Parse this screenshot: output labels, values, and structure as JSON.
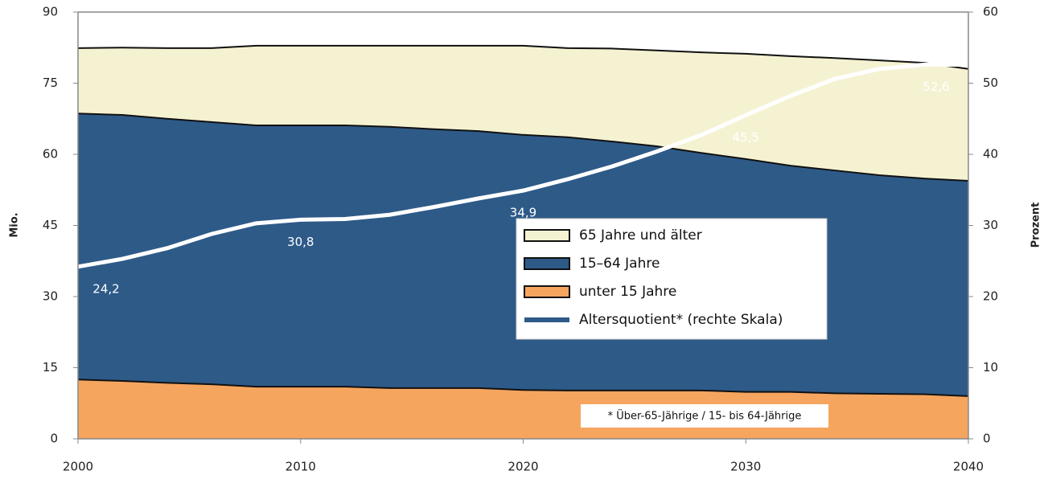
{
  "chart_data": {
    "type": "stacked_area",
    "x": [
      2000,
      2002,
      2004,
      2006,
      2008,
      2010,
      2012,
      2014,
      2016,
      2018,
      2020,
      2022,
      2024,
      2026,
      2028,
      2030,
      2032,
      2034,
      2036,
      2038,
      2040
    ],
    "series": [
      {
        "name": "unter 15 Jahre",
        "color": "#f6a55f",
        "values": [
          12.5,
          12.2,
          11.8,
          11.5,
          11.0,
          11.0,
          11.0,
          10.7,
          10.7,
          10.7,
          10.3,
          10.2,
          10.2,
          10.2,
          10.2,
          9.9,
          9.9,
          9.6,
          9.5,
          9.4,
          9.0
        ]
      },
      {
        "name": "15–64 Jahre",
        "color": "#2e5a88",
        "values": [
          56.1,
          56.1,
          55.7,
          55.3,
          55.1,
          55.1,
          55.1,
          55.1,
          54.6,
          54.2,
          53.8,
          53.4,
          52.5,
          51.5,
          50.1,
          49.1,
          47.7,
          47.0,
          46.1,
          45.5,
          45.4
        ]
      },
      {
        "name": "65 Jahre und älter",
        "color": "#f5f2d2",
        "values": [
          13.8,
          14.2,
          14.9,
          15.6,
          16.8,
          16.8,
          16.8,
          17.1,
          17.6,
          18.0,
          18.8,
          18.8,
          19.6,
          20.2,
          21.2,
          22.2,
          23.1,
          23.7,
          24.2,
          24.4,
          23.6
        ]
      },
      {
        "name": "Altersquotient* (rechte Skala)",
        "color": "#ffffff",
        "legend_color": "#2e5a88",
        "axis": "y2",
        "values": [
          24.2,
          25.3,
          26.8,
          28.8,
          30.3,
          30.8,
          30.9,
          31.5,
          32.6,
          33.8,
          34.9,
          36.5,
          38.3,
          40.4,
          42.7,
          45.5,
          48.2,
          50.6,
          52.0,
          52.6,
          52.6
        ],
        "value_labels": [
          "24,2",
          null,
          null,
          null,
          null,
          "30,8",
          null,
          null,
          null,
          null,
          "34,9",
          null,
          null,
          null,
          null,
          "45,5",
          null,
          null,
          null,
          null,
          "52,6"
        ]
      }
    ],
    "xlim": [
      2000,
      2040
    ],
    "xticks": [
      2000,
      2010,
      2020,
      2030,
      2040
    ],
    "ylim": [
      0,
      90
    ],
    "yticks": [
      0,
      15,
      30,
      45,
      60,
      75,
      90
    ],
    "y2lim": [
      0,
      60
    ],
    "y2ticks": [
      0,
      10,
      20,
      30,
      40,
      50,
      60
    ],
    "ylabel": "Mio.",
    "y2label": "Prozent",
    "annotation": "* Über-65-Jährige / 15- bis 64-Jährige"
  }
}
